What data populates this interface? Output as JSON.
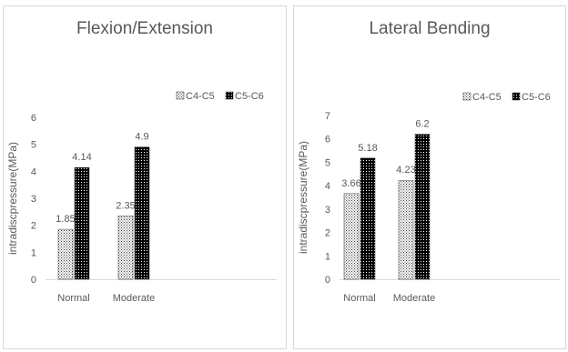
{
  "chart_data": [
    {
      "type": "bar",
      "title": "Flexion/Extension",
      "ylabel": "intradiscpressure(MPa)",
      "xlabel": "",
      "categories": [
        "Normal",
        "Moderate"
      ],
      "ylim": [
        0,
        6
      ],
      "yticks": [
        0,
        1,
        2,
        3,
        4,
        5,
        6
      ],
      "grid": false,
      "legend": "top-right",
      "series": [
        {
          "name": "C4-C5",
          "values": [
            1.85,
            2.35
          ],
          "labels": [
            "1.85",
            "2.35"
          ],
          "pattern": "dots-light"
        },
        {
          "name": "C5-C6",
          "values": [
            4.14,
            4.9
          ],
          "labels": [
            "4.14",
            "4.9"
          ],
          "pattern": "dots-dark"
        }
      ]
    },
    {
      "type": "bar",
      "title": "Lateral Bending",
      "ylabel": "intradiscpressure(MPa)",
      "xlabel": "",
      "categories": [
        "Normal",
        "Moderate"
      ],
      "ylim": [
        0,
        7
      ],
      "yticks": [
        0,
        1,
        2,
        3,
        4,
        5,
        6,
        7
      ],
      "grid": false,
      "legend": "top-right",
      "series": [
        {
          "name": "C4-C5",
          "values": [
            3.66,
            4.23
          ],
          "labels": [
            "3.66",
            "4.23"
          ],
          "pattern": "dots-light"
        },
        {
          "name": "C5-C6",
          "values": [
            5.18,
            6.2
          ],
          "labels": [
            "5.18",
            "6.2"
          ],
          "pattern": "dots-dark"
        }
      ]
    }
  ],
  "colors": {
    "text": "#595959",
    "axis": "#d9d9d9",
    "bar_light_fg": "#3a3a3a",
    "bar_dark_fg": "#000000"
  }
}
